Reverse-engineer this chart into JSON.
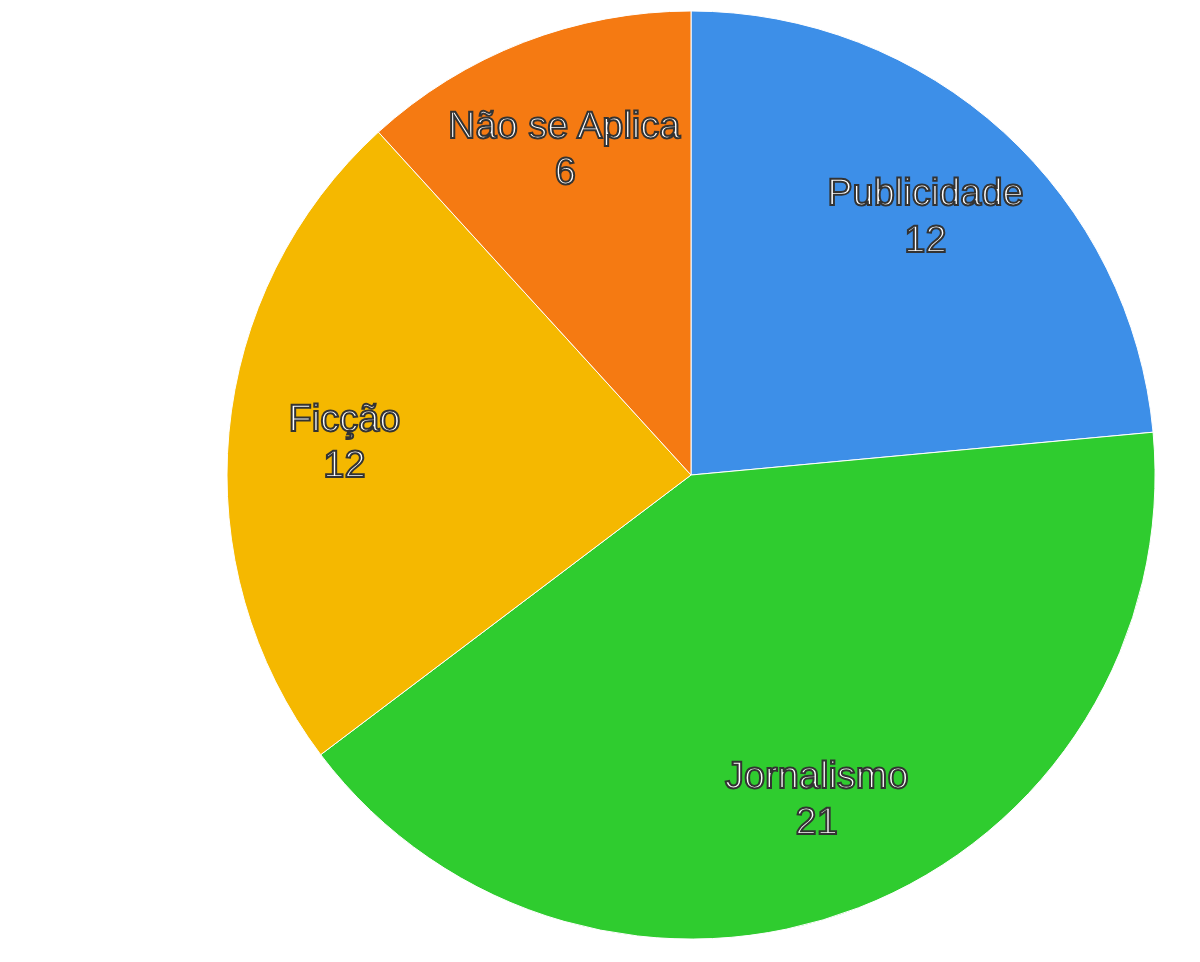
{
  "chart_data": {
    "type": "pie",
    "categories": [
      "Publicidade",
      "Jornalismo",
      "Ficção",
      "Não se Aplica"
    ],
    "values": [
      12,
      21,
      12,
      6
    ],
    "colors": [
      "#3d8fe8",
      "#2fcc2f",
      "#f5b800",
      "#f57a12"
    ],
    "data_labels": true
  }
}
